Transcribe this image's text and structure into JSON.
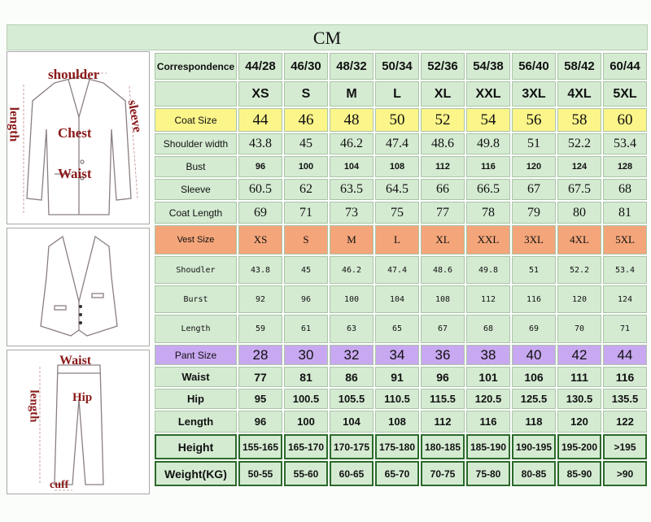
{
  "header": {
    "unit": "CM"
  },
  "diagrams": {
    "coat": {
      "labels": {
        "shoulder": "shoulder",
        "length": "length",
        "sleeve": "sleeve",
        "chest": "Chest",
        "waist": "Waist"
      }
    },
    "pant": {
      "labels": {
        "waist": "Waist",
        "hip": "Hip",
        "length": "length",
        "cuff": "cuff"
      }
    }
  },
  "table": {
    "correspondence": {
      "label": "Correspondence",
      "values": [
        "44/28",
        "46/30",
        "48/32",
        "50/34",
        "52/36",
        "54/38",
        "56/40",
        "58/42",
        "60/44"
      ]
    },
    "letter_sizes": [
      "XS",
      "S",
      "M",
      "L",
      "XL",
      "XXL",
      "3XL",
      "4XL",
      "5XL"
    ],
    "coat": [
      {
        "label": "Coat Size",
        "values": [
          "44",
          "46",
          "48",
          "50",
          "52",
          "54",
          "56",
          "58",
          "60"
        ]
      },
      {
        "label": "Shoulder width",
        "values": [
          "43.8",
          "45",
          "46.2",
          "47.4",
          "48.6",
          "49.8",
          "51",
          "52.2",
          "53.4"
        ]
      },
      {
        "label": "Bust",
        "values": [
          "96",
          "100",
          "104",
          "108",
          "112",
          "116",
          "120",
          "124",
          "128"
        ]
      },
      {
        "label": "Sleeve",
        "values": [
          "60.5",
          "62",
          "63.5",
          "64.5",
          "66",
          "66.5",
          "67",
          "67.5",
          "68"
        ]
      },
      {
        "label": "Coat Length",
        "values": [
          "69",
          "71",
          "73",
          "75",
          "77",
          "78",
          "79",
          "80",
          "81"
        ]
      }
    ],
    "vest": [
      {
        "label": "Vest Size",
        "values": [
          "XS",
          "S",
          "M",
          "L",
          "XL",
          "XXL",
          "3XL",
          "4XL",
          "5XL"
        ]
      },
      {
        "label": "Shoudler",
        "values": [
          "43.8",
          "45",
          "46.2",
          "47.4",
          "48.6",
          "49.8",
          "51",
          "52.2",
          "53.4"
        ]
      },
      {
        "label": "Burst",
        "values": [
          "92",
          "96",
          "100",
          "104",
          "108",
          "112",
          "116",
          "120",
          "124"
        ]
      },
      {
        "label": "Length",
        "values": [
          "59",
          "61",
          "63",
          "65",
          "67",
          "68",
          "69",
          "70",
          "71"
        ]
      }
    ],
    "pant": [
      {
        "label": "Pant Size",
        "values": [
          "28",
          "30",
          "32",
          "34",
          "36",
          "38",
          "40",
          "42",
          "44"
        ]
      },
      {
        "label": "Waist",
        "values": [
          "77",
          "81",
          "86",
          "91",
          "96",
          "101",
          "106",
          "111",
          "116"
        ]
      },
      {
        "label": "Hip",
        "values": [
          "95",
          "100.5",
          "105.5",
          "110.5",
          "115.5",
          "120.5",
          "125.5",
          "130.5",
          "135.5"
        ]
      },
      {
        "label": "Length",
        "values": [
          "96",
          "100",
          "104",
          "108",
          "112",
          "116",
          "118",
          "120",
          "122"
        ]
      }
    ],
    "body": [
      {
        "label": "Height",
        "values": [
          "155-165",
          "165-170",
          "170-175",
          "175-180",
          "180-185",
          "185-190",
          "190-195",
          "195-200",
          ">195"
        ]
      },
      {
        "label": "Weight(KG)",
        "values": [
          "50-55",
          "55-60",
          "60-65",
          "65-70",
          "70-75",
          "75-80",
          "80-85",
          "85-90",
          ">90"
        ]
      }
    ]
  },
  "colors": {
    "cell_green": "#d4ebd2",
    "coat_yellow": "#fbf58a",
    "vest_orange": "#f4a57a",
    "pant_purple": "#c8a8f0",
    "letter_red": "#e01010",
    "corr_purple": "#7a2a9a"
  }
}
